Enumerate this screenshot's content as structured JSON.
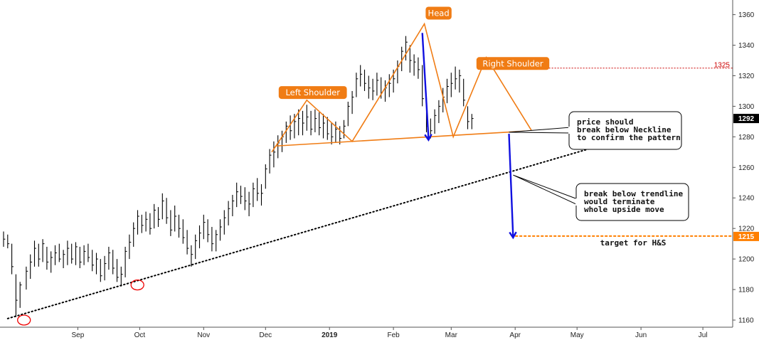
{
  "chart_data": {
    "type": "ohlc",
    "title": "",
    "xlabel": "",
    "ylabel": "",
    "ylim": [
      1155,
      1365
    ],
    "y_ticks": [
      1160,
      1180,
      1200,
      1220,
      1240,
      1260,
      1280,
      1300,
      1320,
      1340,
      1360
    ],
    "x_ticks": [
      {
        "label": "Sep",
        "bold": false,
        "t": 36
      },
      {
        "label": "Oct",
        "bold": false,
        "t": 66
      },
      {
        "label": "Nov",
        "bold": false,
        "t": 97
      },
      {
        "label": "Dec",
        "bold": false,
        "t": 127
      },
      {
        "label": "2019",
        "bold": true,
        "t": 158
      },
      {
        "label": "Feb",
        "bold": false,
        "t": 189
      },
      {
        "label": "Mar",
        "bold": false,
        "t": 217
      },
      {
        "label": "Apr",
        "bold": false,
        "t": 248
      },
      {
        "label": "May",
        "bold": false,
        "t": 278
      },
      {
        "label": "Jun",
        "bold": false,
        "t": 309
      },
      {
        "label": "Jul",
        "bold": false,
        "t": 339
      }
    ],
    "xlim": [
      0,
      350
    ],
    "last_price": {
      "value": 1292,
      "label": "1292"
    },
    "resistance": {
      "value": 1325,
      "label": "1325",
      "color": "#cc0000"
    },
    "target": {
      "value": 1215,
      "label": "1215",
      "text": "target for H&S",
      "color": "#ff7f00"
    },
    "pattern_labels": [
      {
        "text": "Left Shoulder",
        "t": 143,
        "y": 1309
      },
      {
        "text": "Head",
        "t": 204,
        "y": 1361
      },
      {
        "text": "Right Shoulder",
        "t": 240,
        "y": 1328
      }
    ],
    "head_shoulders_lines": [
      [
        [
          130,
          1270
        ],
        [
          147,
          1304
        ],
        [
          169,
          1277
        ],
        [
          204,
          1354
        ],
        [
          218,
          1280
        ],
        [
          234,
          1332
        ],
        [
          256,
          1284
        ]
      ]
    ],
    "neckline": {
      "from": {
        "t": 132,
        "y": 1274
      },
      "to": {
        "t": 256,
        "y": 1284
      }
    },
    "trendline": {
      "from": {
        "t": 2,
        "y": 1161
      },
      "to": {
        "t": 286,
        "y": 1273
      }
    },
    "blue_arrows": [
      {
        "from": {
          "t": 203,
          "y": 1348
        },
        "to": {
          "t": 206,
          "y": 1278
        }
      },
      {
        "from": {
          "t": 245,
          "y": 1282
        },
        "to": {
          "t": 247,
          "y": 1214
        }
      }
    ],
    "circles": [
      {
        "t": 3,
        "y": 1160
      },
      {
        "t": 58,
        "y": 1183
      }
    ],
    "callouts": [
      {
        "lines": [
          "price should",
          "break below Neckline",
          "to confirm the pattern"
        ],
        "anchor": {
          "t": 245,
          "y": 1283
        }
      },
      {
        "lines": [
          "break below trendline",
          "would terminate",
          "whole upside move"
        ],
        "anchor": {
          "t": 247,
          "y": 1255
        }
      }
    ],
    "series": [
      {
        "y": [
          [
            0,
            1218,
            1208,
            1213
          ],
          [
            2,
            1216,
            1207,
            1210
          ],
          [
            4,
            1210,
            1190,
            1195
          ],
          [
            6,
            1190,
            1162,
            1173
          ],
          [
            8,
            1185,
            1168,
            1183
          ],
          [
            11,
            1195,
            1180,
            1192
          ],
          [
            13,
            1203,
            1187,
            1198
          ],
          [
            15,
            1212,
            1195,
            1207
          ],
          [
            17,
            1210,
            1195,
            1200
          ],
          [
            19,
            1213,
            1198,
            1210
          ],
          [
            21,
            1208,
            1193,
            1198
          ],
          [
            23,
            1205,
            1191,
            1201
          ],
          [
            25,
            1209,
            1196,
            1204
          ],
          [
            27,
            1210,
            1198,
            1200
          ],
          [
            29,
            1206,
            1194,
            1203
          ],
          [
            31,
            1212,
            1196,
            1207
          ],
          [
            33,
            1210,
            1197,
            1200
          ],
          [
            35,
            1211,
            1196,
            1208
          ],
          [
            37,
            1208,
            1194,
            1198
          ],
          [
            39,
            1209,
            1196,
            1205
          ],
          [
            41,
            1210,
            1198,
            1201
          ],
          [
            43,
            1206,
            1192,
            1196
          ],
          [
            45,
            1204,
            1190,
            1200
          ],
          [
            47,
            1200,
            1185,
            1189
          ],
          [
            49,
            1202,
            1186,
            1197
          ],
          [
            51,
            1208,
            1193,
            1204
          ],
          [
            53,
            1206,
            1190,
            1194
          ],
          [
            55,
            1200,
            1185,
            1188
          ],
          [
            57,
            1195,
            1182,
            1190
          ],
          [
            59,
            1208,
            1188,
            1205
          ],
          [
            61,
            1216,
            1200,
            1211
          ],
          [
            63,
            1224,
            1208,
            1220
          ],
          [
            65,
            1232,
            1216,
            1228
          ],
          [
            67,
            1229,
            1217,
            1222
          ],
          [
            69,
            1231,
            1218,
            1226
          ],
          [
            71,
            1230,
            1216,
            1220
          ],
          [
            73,
            1236,
            1220,
            1232
          ],
          [
            75,
            1234,
            1221,
            1226
          ],
          [
            77,
            1243,
            1226,
            1238
          ],
          [
            79,
            1240,
            1223,
            1227
          ],
          [
            81,
            1232,
            1215,
            1219
          ],
          [
            83,
            1235,
            1218,
            1228
          ],
          [
            85,
            1229,
            1214,
            1220
          ],
          [
            87,
            1226,
            1210,
            1214
          ],
          [
            89,
            1219,
            1203,
            1207
          ],
          [
            91,
            1209,
            1195,
            1203
          ],
          [
            93,
            1216,
            1200,
            1212
          ],
          [
            95,
            1222,
            1207,
            1217
          ],
          [
            97,
            1229,
            1213,
            1224
          ],
          [
            99,
            1226,
            1211,
            1216
          ],
          [
            101,
            1221,
            1205,
            1210
          ],
          [
            103,
            1219,
            1205,
            1216
          ],
          [
            105,
            1226,
            1212,
            1221
          ],
          [
            107,
            1232,
            1216,
            1227
          ],
          [
            109,
            1238,
            1222,
            1233
          ],
          [
            111,
            1242,
            1228,
            1238
          ],
          [
            113,
            1250,
            1234,
            1244
          ],
          [
            115,
            1248,
            1236,
            1241
          ],
          [
            117,
            1247,
            1232,
            1238
          ],
          [
            119,
            1244,
            1228,
            1236
          ],
          [
            121,
            1250,
            1234,
            1246
          ],
          [
            123,
            1253,
            1238,
            1243
          ],
          [
            125,
            1249,
            1235,
            1243
          ],
          [
            127,
            1262,
            1246,
            1259
          ],
          [
            129,
            1272,
            1256,
            1268
          ],
          [
            131,
            1277,
            1260,
            1270
          ],
          [
            133,
            1281,
            1266,
            1276
          ],
          [
            135,
            1284,
            1270,
            1280
          ],
          [
            137,
            1290,
            1276,
            1287
          ],
          [
            139,
            1294,
            1278,
            1284
          ],
          [
            141,
            1295,
            1279,
            1290
          ],
          [
            143,
            1298,
            1281,
            1292
          ],
          [
            145,
            1297,
            1281,
            1289
          ],
          [
            147,
            1301,
            1284,
            1293
          ],
          [
            149,
            1297,
            1281,
            1285
          ],
          [
            151,
            1298,
            1283,
            1292
          ],
          [
            153,
            1296,
            1281,
            1286
          ],
          [
            155,
            1295,
            1279,
            1289
          ],
          [
            157,
            1293,
            1278,
            1282
          ],
          [
            159,
            1289,
            1275,
            1280
          ],
          [
            161,
            1290,
            1276,
            1285
          ],
          [
            163,
            1287,
            1275,
            1279
          ],
          [
            165,
            1291,
            1279,
            1287
          ],
          [
            167,
            1303,
            1287,
            1300
          ],
          [
            169,
            1310,
            1295,
            1306
          ],
          [
            171,
            1322,
            1306,
            1318
          ],
          [
            173,
            1327,
            1313,
            1321
          ],
          [
            175,
            1324,
            1310,
            1315
          ],
          [
            177,
            1320,
            1305,
            1312
          ],
          [
            179,
            1318,
            1304,
            1310
          ],
          [
            181,
            1322,
            1307,
            1317
          ],
          [
            183,
            1319,
            1305,
            1309
          ],
          [
            185,
            1317,
            1303,
            1312
          ],
          [
            187,
            1321,
            1306,
            1315
          ],
          [
            189,
            1324,
            1309,
            1318
          ],
          [
            191,
            1330,
            1315,
            1326
          ],
          [
            193,
            1339,
            1323,
            1336
          ],
          [
            195,
            1346,
            1330,
            1342
          ],
          [
            197,
            1340,
            1322,
            1330
          ],
          [
            199,
            1334,
            1320,
            1329
          ],
          [
            201,
            1332,
            1318,
            1324
          ],
          [
            203,
            1327,
            1300,
            1305
          ],
          [
            205,
            1304,
            1283,
            1287
          ],
          [
            207,
            1292,
            1279,
            1284
          ],
          [
            209,
            1298,
            1282,
            1294
          ],
          [
            211,
            1304,
            1289,
            1300
          ],
          [
            213,
            1312,
            1296,
            1306
          ],
          [
            215,
            1318,
            1302,
            1313
          ],
          [
            217,
            1322,
            1306,
            1315
          ],
          [
            219,
            1326,
            1311,
            1318
          ],
          [
            221,
            1324,
            1309,
            1320
          ],
          [
            223,
            1318,
            1300,
            1304
          ],
          [
            225,
            1300,
            1285,
            1290
          ],
          [
            227,
            1295,
            1285,
            1292
          ]
        ]
      }
    ]
  }
}
